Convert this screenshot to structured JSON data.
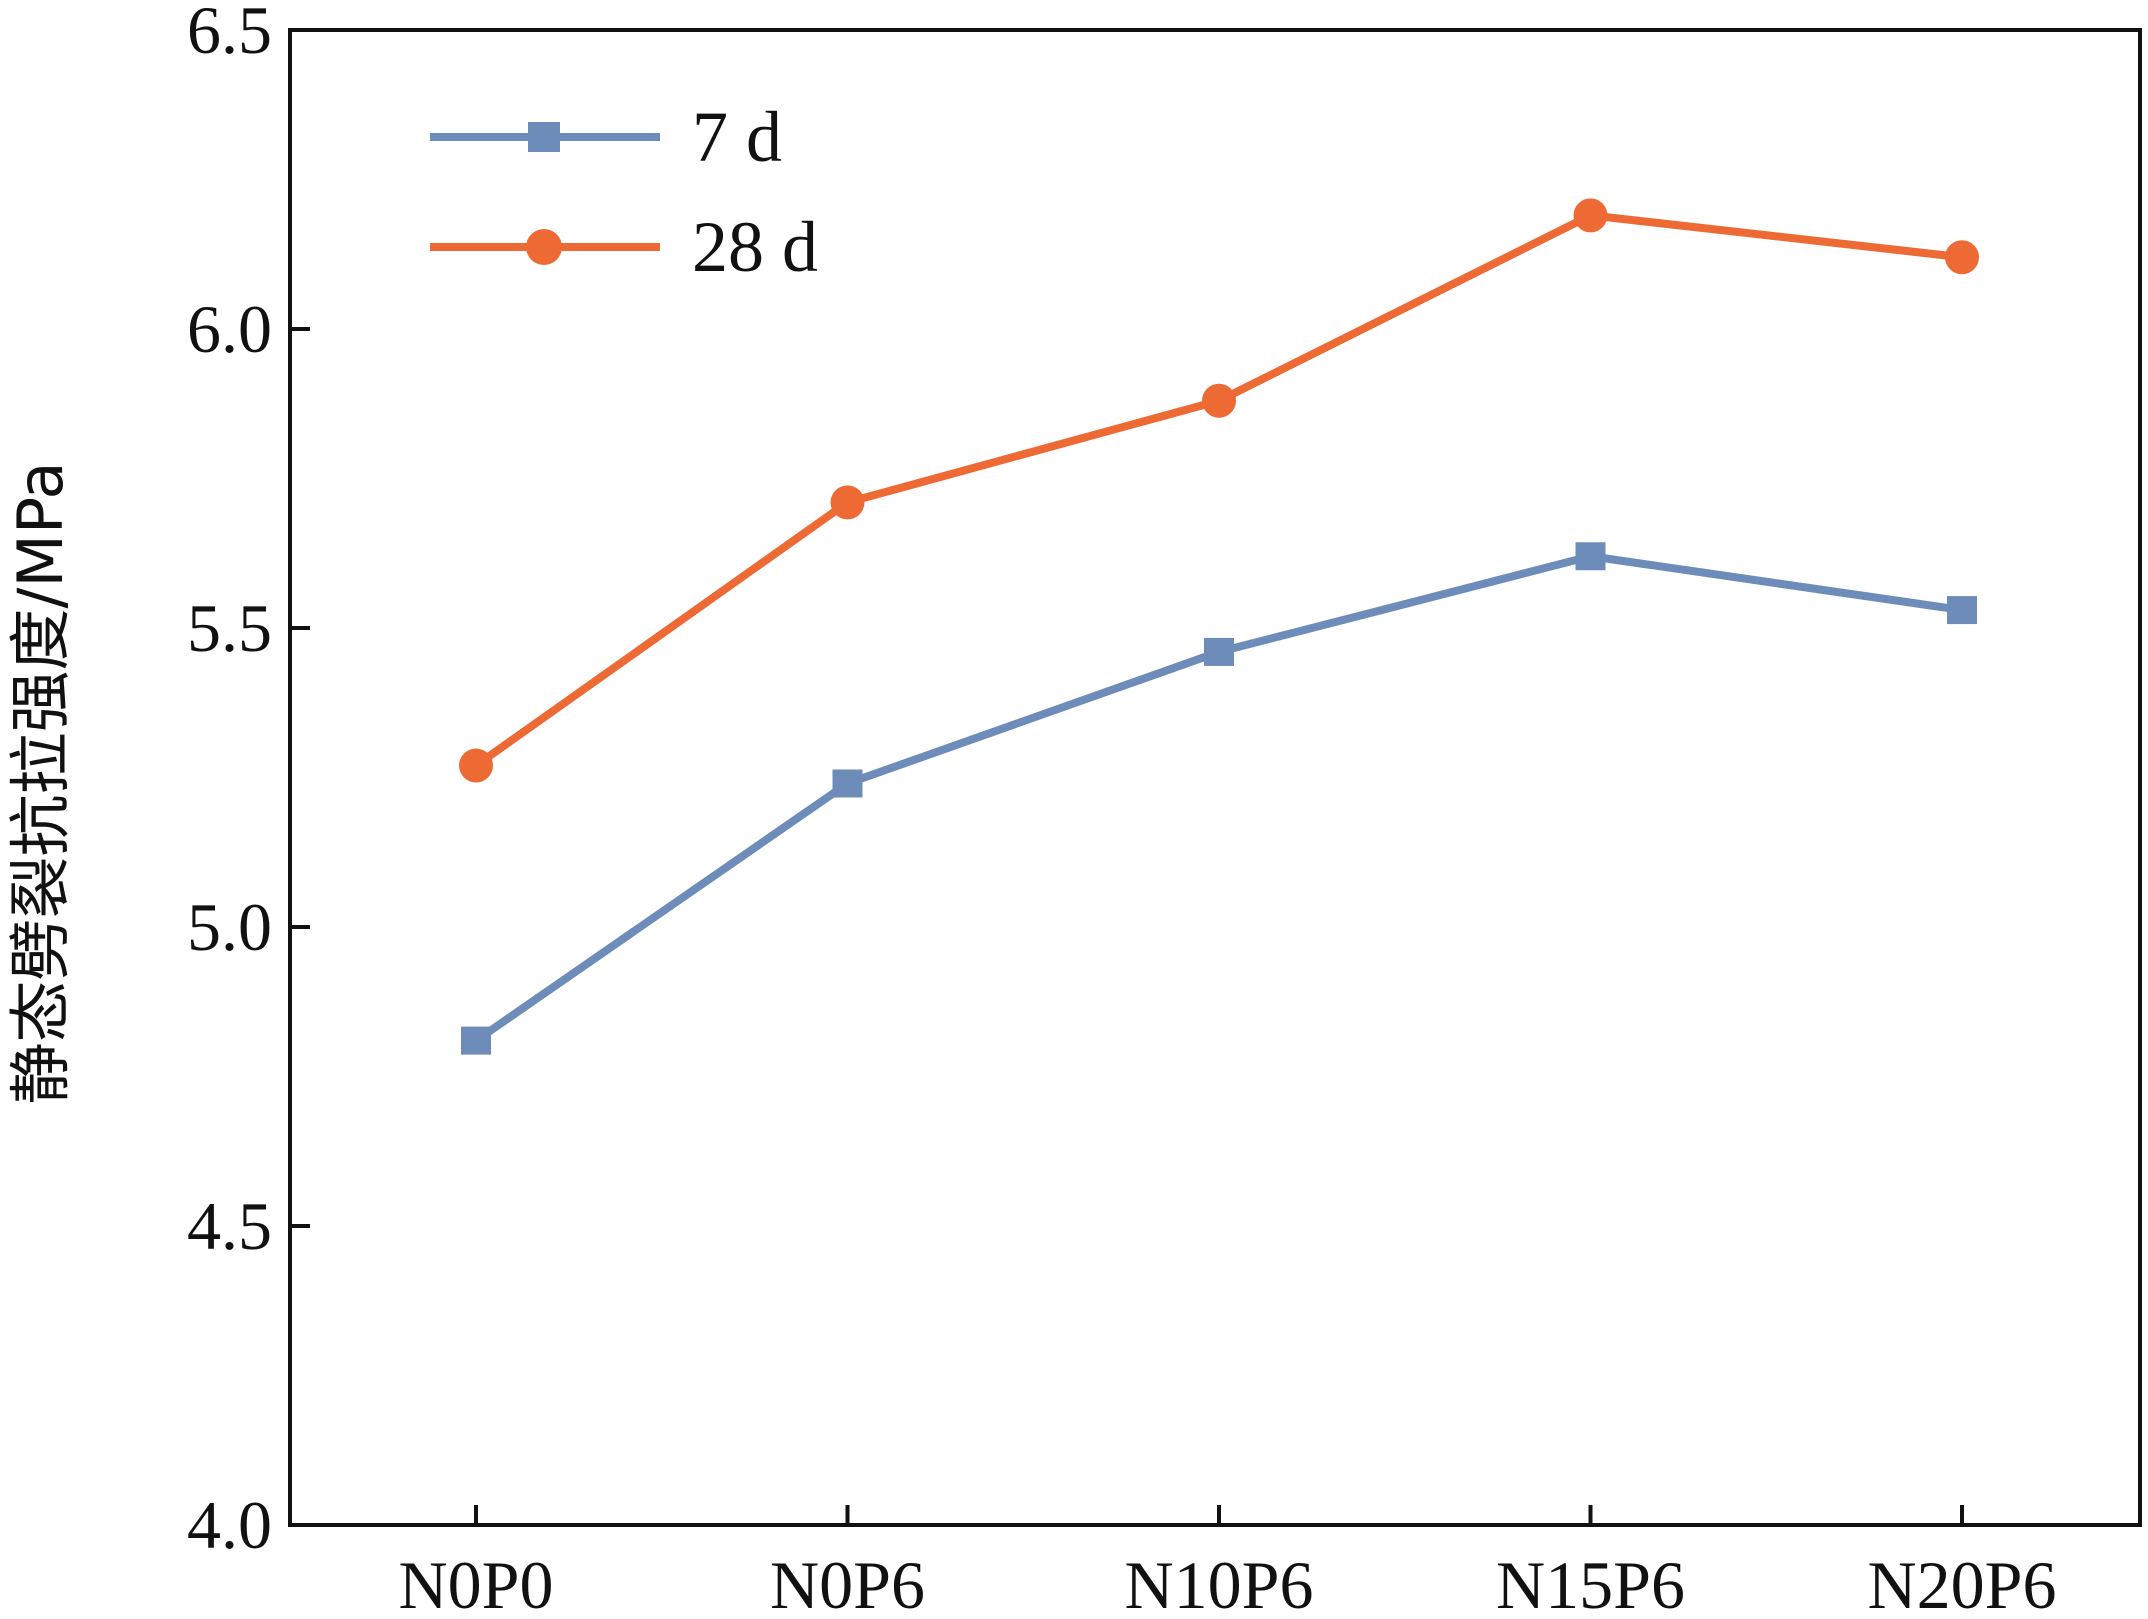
{
  "chart_data": {
    "type": "line",
    "categories": [
      "N0P0",
      "N0P6",
      "N10P6",
      "N15P6",
      "N20P6"
    ],
    "series": [
      {
        "name": "7 d",
        "values": [
          4.81,
          5.24,
          5.46,
          5.62,
          5.53
        ],
        "color": "#6d8cba",
        "marker": "square"
      },
      {
        "name": "28 d",
        "values": [
          5.27,
          5.71,
          5.88,
          6.19,
          6.12
        ],
        "color": "#ee6a35",
        "marker": "circle"
      }
    ],
    "xlabel": "",
    "ylabel": "静态劈裂抗拉强度/MPa",
    "ylim": [
      4.0,
      6.5
    ],
    "yticks": [
      "4.0",
      "4.5",
      "5.0",
      "5.5",
      "6.0",
      "6.5"
    ],
    "grid": false,
    "legend_position": "top-left"
  }
}
